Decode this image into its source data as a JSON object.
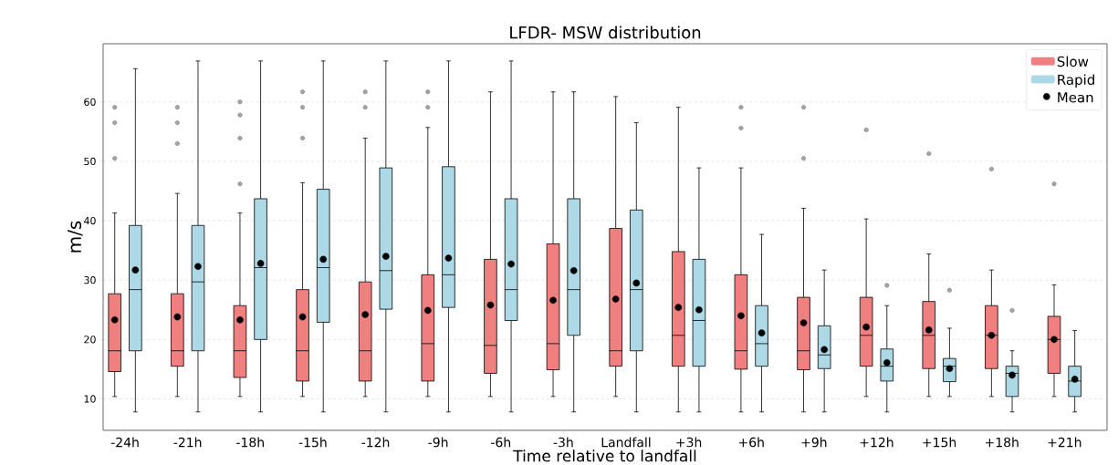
{
  "chart_data": {
    "type": "box",
    "title": "LFDR- MSW distribution",
    "xlabel": "Time relative to landfall",
    "ylabel": "m/s",
    "categories": [
      "-24h",
      "-21h",
      "-18h",
      "-15h",
      "-12h",
      "-9h",
      "-6h",
      "-3h",
      "Landfall",
      "+3h",
      "+6h",
      "+9h",
      "+12h",
      "+15h",
      "+18h",
      "+21h"
    ],
    "ylim": [
      4.7,
      69.8
    ],
    "yticks": [
      10,
      20,
      30,
      40,
      50,
      60
    ],
    "grid": "y",
    "legend": "top right",
    "annotations": [
      "Mean"
    ],
    "series": [
      {
        "name": "Slow",
        "color": "#f08080",
        "boxes": [
          {
            "low": 10.4,
            "q1": 14.6,
            "median": 18.1,
            "q3": 27.7,
            "high": 41.3,
            "mean": 23.3,
            "outliers": [
              59.1,
              56.5,
              50.5
            ]
          },
          {
            "low": 10.4,
            "q1": 15.5,
            "median": 18.1,
            "q3": 27.7,
            "high": 44.6,
            "mean": 23.8,
            "outliers": [
              59.1,
              56.5,
              53.0
            ]
          },
          {
            "low": 10.4,
            "q1": 13.6,
            "median": 18.1,
            "q3": 25.7,
            "high": 41.3,
            "mean": 23.3,
            "outliers": [
              60.0,
              57.8,
              53.9,
              46.2
            ]
          },
          {
            "low": 10.4,
            "q1": 13.0,
            "median": 18.1,
            "q3": 28.4,
            "high": 46.4,
            "mean": 23.8,
            "outliers": [
              61.7,
              59.1,
              53.9
            ]
          },
          {
            "low": 10.4,
            "q1": 13.0,
            "median": 18.1,
            "q3": 29.7,
            "high": 53.9,
            "mean": 24.2,
            "outliers": [
              61.7,
              59.1
            ]
          },
          {
            "low": 10.4,
            "q1": 13.0,
            "median": 19.3,
            "q3": 30.9,
            "high": 55.7,
            "mean": 24.9,
            "outliers": [
              61.7,
              59.1
            ]
          },
          {
            "low": 10.4,
            "q1": 14.3,
            "median": 19.0,
            "q3": 33.5,
            "high": 61.7,
            "mean": 25.8
          },
          {
            "low": 10.4,
            "q1": 14.9,
            "median": 19.3,
            "q3": 36.1,
            "high": 61.7,
            "mean": 26.6
          },
          {
            "low": 10.4,
            "q1": 15.5,
            "median": 18.1,
            "q3": 38.7,
            "high": 60.9,
            "mean": 26.8
          },
          {
            "low": 7.8,
            "q1": 15.5,
            "median": 20.7,
            "q3": 34.8,
            "high": 59.1,
            "mean": 25.4
          },
          {
            "low": 7.8,
            "q1": 15.0,
            "median": 18.1,
            "q3": 30.9,
            "high": 48.9,
            "mean": 24.0,
            "outliers": [
              59.1,
              55.6
            ]
          },
          {
            "low": 7.8,
            "q1": 14.9,
            "median": 18.1,
            "q3": 27.1,
            "high": 42.1,
            "mean": 22.8,
            "outliers": [
              59.1,
              50.5
            ]
          },
          {
            "low": 10.4,
            "q1": 15.5,
            "median": 20.7,
            "q3": 27.1,
            "high": 40.3,
            "mean": 22.1,
            "outliers": [
              55.3
            ]
          },
          {
            "low": 10.4,
            "q1": 15.1,
            "median": 20.7,
            "q3": 26.4,
            "high": 34.4,
            "mean": 21.6,
            "outliers": [
              51.3
            ]
          },
          {
            "low": 10.4,
            "q1": 15.1,
            "median": 20.7,
            "q3": 25.7,
            "high": 31.7,
            "mean": 20.7,
            "outliers": [
              48.7
            ]
          },
          {
            "low": 10.4,
            "q1": 14.3,
            "median": 20.0,
            "q3": 23.9,
            "high": 29.2,
            "mean": 20.0,
            "outliers": [
              46.2
            ]
          }
        ]
      },
      {
        "name": "Rapid",
        "color": "#add8e6",
        "boxes": [
          {
            "low": 7.8,
            "q1": 18.1,
            "median": 28.4,
            "q3": 39.2,
            "high": 65.6,
            "mean": 31.7
          },
          {
            "low": 7.8,
            "q1": 18.1,
            "median": 29.7,
            "q3": 39.2,
            "high": 66.9,
            "mean": 32.3
          },
          {
            "low": 7.8,
            "q1": 20.0,
            "median": 32.1,
            "q3": 43.7,
            "high": 66.9,
            "mean": 32.8
          },
          {
            "low": 7.8,
            "q1": 22.9,
            "median": 32.1,
            "q3": 45.3,
            "high": 66.9,
            "mean": 33.5
          },
          {
            "low": 7.8,
            "q1": 25.1,
            "median": 31.6,
            "q3": 48.9,
            "high": 66.9,
            "mean": 34.0
          },
          {
            "low": 7.8,
            "q1": 25.4,
            "median": 30.9,
            "q3": 49.1,
            "high": 66.9,
            "mean": 33.7
          },
          {
            "low": 7.8,
            "q1": 23.2,
            "median": 28.4,
            "q3": 43.7,
            "high": 66.9,
            "mean": 32.7
          },
          {
            "low": 7.8,
            "q1": 20.7,
            "median": 28.4,
            "q3": 43.7,
            "high": 61.7,
            "mean": 31.6
          },
          {
            "low": 7.8,
            "q1": 18.1,
            "median": 28.4,
            "q3": 41.8,
            "high": 56.5,
            "mean": 29.5
          },
          {
            "low": 7.8,
            "q1": 15.5,
            "median": 23.2,
            "q3": 33.5,
            "high": 48.9,
            "mean": 25.0
          },
          {
            "low": 7.8,
            "q1": 15.5,
            "median": 19.3,
            "q3": 25.7,
            "high": 37.7,
            "mean": 21.1
          },
          {
            "low": 7.8,
            "q1": 15.1,
            "median": 17.4,
            "q3": 22.3,
            "high": 31.7,
            "mean": 18.3
          },
          {
            "low": 7.8,
            "q1": 13.0,
            "median": 15.5,
            "q3": 18.4,
            "high": 25.7,
            "mean": 16.1,
            "outliers": [
              29.1
            ]
          },
          {
            "low": 10.4,
            "q1": 12.9,
            "median": 15.5,
            "q3": 16.8,
            "high": 21.9,
            "mean": 15.1,
            "outliers": [
              28.3
            ]
          },
          {
            "low": 7.8,
            "q1": 10.4,
            "median": 14.3,
            "q3": 15.5,
            "high": 18.1,
            "mean": 14.0,
            "outliers": [
              24.9
            ]
          },
          {
            "low": 7.8,
            "q1": 10.4,
            "median": 13.0,
            "q3": 15.5,
            "high": 21.5,
            "mean": 13.3
          }
        ]
      }
    ]
  }
}
